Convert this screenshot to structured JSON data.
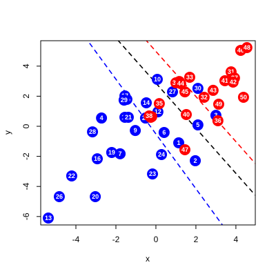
{
  "chart_data": {
    "type": "scatter",
    "xlabel": "x",
    "ylabel": "y",
    "xlim": [
      -5.76,
      4.97
    ],
    "ylim": [
      -6.56,
      5.69
    ],
    "xticks": [
      -4,
      -2,
      0,
      2,
      4
    ],
    "yticks": [
      -6,
      -4,
      -2,
      0,
      2,
      4
    ],
    "series": [
      {
        "color": "#0000ff",
        "labels": [
          "1",
          "2",
          "3",
          "4",
          "5",
          "6",
          "7",
          "9",
          "10",
          "11",
          "12",
          "13",
          "14",
          "15",
          "16",
          "17",
          "19",
          "20",
          "21",
          "22",
          "23",
          "24",
          "25",
          "26",
          "27",
          "28",
          "29",
          "30"
        ],
        "x": [
          1.14,
          1.97,
          3.0,
          -2.72,
          2.1,
          0.41,
          -1.79,
          -1.03,
          0.07,
          -1.55,
          0.1,
          -5.38,
          -0.48,
          -1.45,
          -2.93,
          -1.55,
          -2.21,
          -3.03,
          -1.38,
          -4.21,
          -0.17,
          0.28,
          -0.52,
          -4.83,
          0.83,
          -3.17,
          -1.59,
          2.1
        ],
        "y": [
          -1.1,
          -2.29,
          0.73,
          0.55,
          0.09,
          -0.41,
          -1.83,
          -0.28,
          3.12,
          0.6,
          0.96,
          -6.1,
          1.56,
          1.79,
          -2.16,
          2.02,
          -1.74,
          -4.68,
          0.6,
          -3.3,
          -3.17,
          -1.88,
          0.55,
          -4.68,
          2.29,
          -0.37,
          1.74,
          2.52
        ]
      },
      {
        "color": "#ff0000",
        "labels": [
          "8",
          "18",
          "31",
          "32",
          "33",
          "34",
          "35",
          "36",
          "37",
          "38",
          "39",
          "40",
          "41",
          "42",
          "43",
          "44",
          "45",
          "46",
          "47",
          "48",
          "49",
          "50"
        ],
        "x": [
          -0.21,
          -0.26,
          3.76,
          2.41,
          1.69,
          1.17,
          0.17,
          3.1,
          3.93,
          -0.34,
          1.0,
          1.52,
          3.45,
          3.86,
          2.86,
          1.24,
          1.45,
          4.24,
          1.45,
          4.55,
          3.14,
          4.38
        ],
        "y": [
          0.64,
          0.6,
          3.62,
          1.93,
          3.26,
          2.98,
          1.51,
          0.37,
          3.21,
          0.69,
          2.89,
          0.78,
          3.03,
          2.94,
          2.39,
          2.84,
          2.29,
          5.05,
          -1.56,
          5.23,
          1.47,
          1.93
        ]
      }
    ],
    "lines": [
      {
        "color": "#000000",
        "intercept": 2.87,
        "slope": -1.5
      },
      {
        "color": "#ff0000",
        "intercept": 4.98,
        "slope": -1.5
      },
      {
        "color": "#0000ff",
        "intercept": -0.51,
        "slope": -1.82
      }
    ]
  }
}
